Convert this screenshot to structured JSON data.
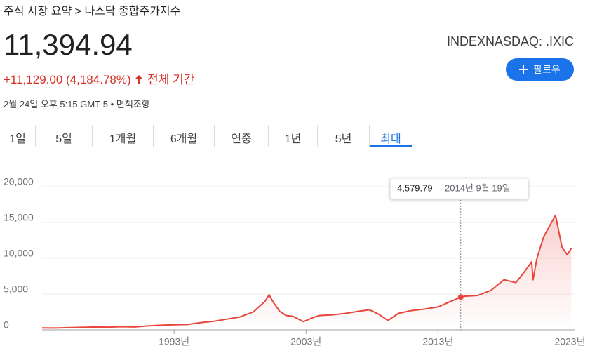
{
  "header": {
    "breadcrumb": "주식 시장 요약 > 나스닥 종합주가지수",
    "price": "11,394.94",
    "change": "+11,129.00 (4,184.78%)",
    "period": "전체 기간",
    "timestamp": "2월 24일 오후 5:15 GMT-5 • 면책조항",
    "ticker": "INDEXNASDAQ: .IXIC",
    "follow": "팔로우"
  },
  "tabs": {
    "items": [
      "1일",
      "5일",
      "1개월",
      "6개월",
      "연중",
      "1년",
      "5년",
      "최대"
    ],
    "active": "최대"
  },
  "chart_data": {
    "type": "line",
    "color": "#e8453c",
    "grid": true,
    "x": [
      1983,
      1984,
      1985,
      1986,
      1987,
      1988,
      1989,
      1990,
      1991,
      1992,
      1993,
      1994,
      1995,
      1996,
      1997,
      1998,
      1999,
      1999.9,
      2000.2,
      2000.5,
      2001,
      2001.5,
      2002,
      2002.8,
      2003.5,
      2004,
      2005,
      2006,
      2007,
      2007.8,
      2008.5,
      2009.2,
      2010,
      2011,
      2012,
      2013,
      2014,
      2014.72,
      2015,
      2016,
      2017,
      2018,
      2018.9,
      2019.5,
      2020.1,
      2020.2,
      2020.5,
      2021,
      2021.9,
      2022.4,
      2022.8,
      2023.1
    ],
    "values": [
      270,
      250,
      300,
      350,
      400,
      380,
      440,
      400,
      550,
      650,
      720,
      750,
      1000,
      1200,
      1500,
      1800,
      2500,
      4000,
      4900,
      3900,
      2600,
      2000,
      1900,
      1150,
      1700,
      2000,
      2100,
      2300,
      2600,
      2800,
      2200,
      1300,
      2300,
      2700,
      2900,
      3200,
      4000,
      4579.79,
      4700,
      4800,
      5500,
      7000,
      6600,
      8000,
      9500,
      7000,
      10000,
      13000,
      16000,
      11500,
      10500,
      11394.94
    ],
    "xlim": [
      1983,
      2023.4
    ],
    "ylim": [
      0,
      20000
    ],
    "xticks": [
      {
        "value": 1993,
        "label": "1993년"
      },
      {
        "value": 2003,
        "label": "2003년"
      },
      {
        "value": 2013,
        "label": "2013년"
      },
      {
        "value": 2023,
        "label": "2023년"
      }
    ],
    "yticks": [
      0,
      {
        "value": 5000,
        "label": "5,000"
      },
      {
        "value": 10000,
        "label": "10,000"
      },
      {
        "value": 15000,
        "label": "15,000"
      },
      {
        "value": 20000,
        "label": "20,000"
      }
    ],
    "tooltip": {
      "value_label": "4,579.79",
      "date": "2014년 9월 19일"
    }
  }
}
